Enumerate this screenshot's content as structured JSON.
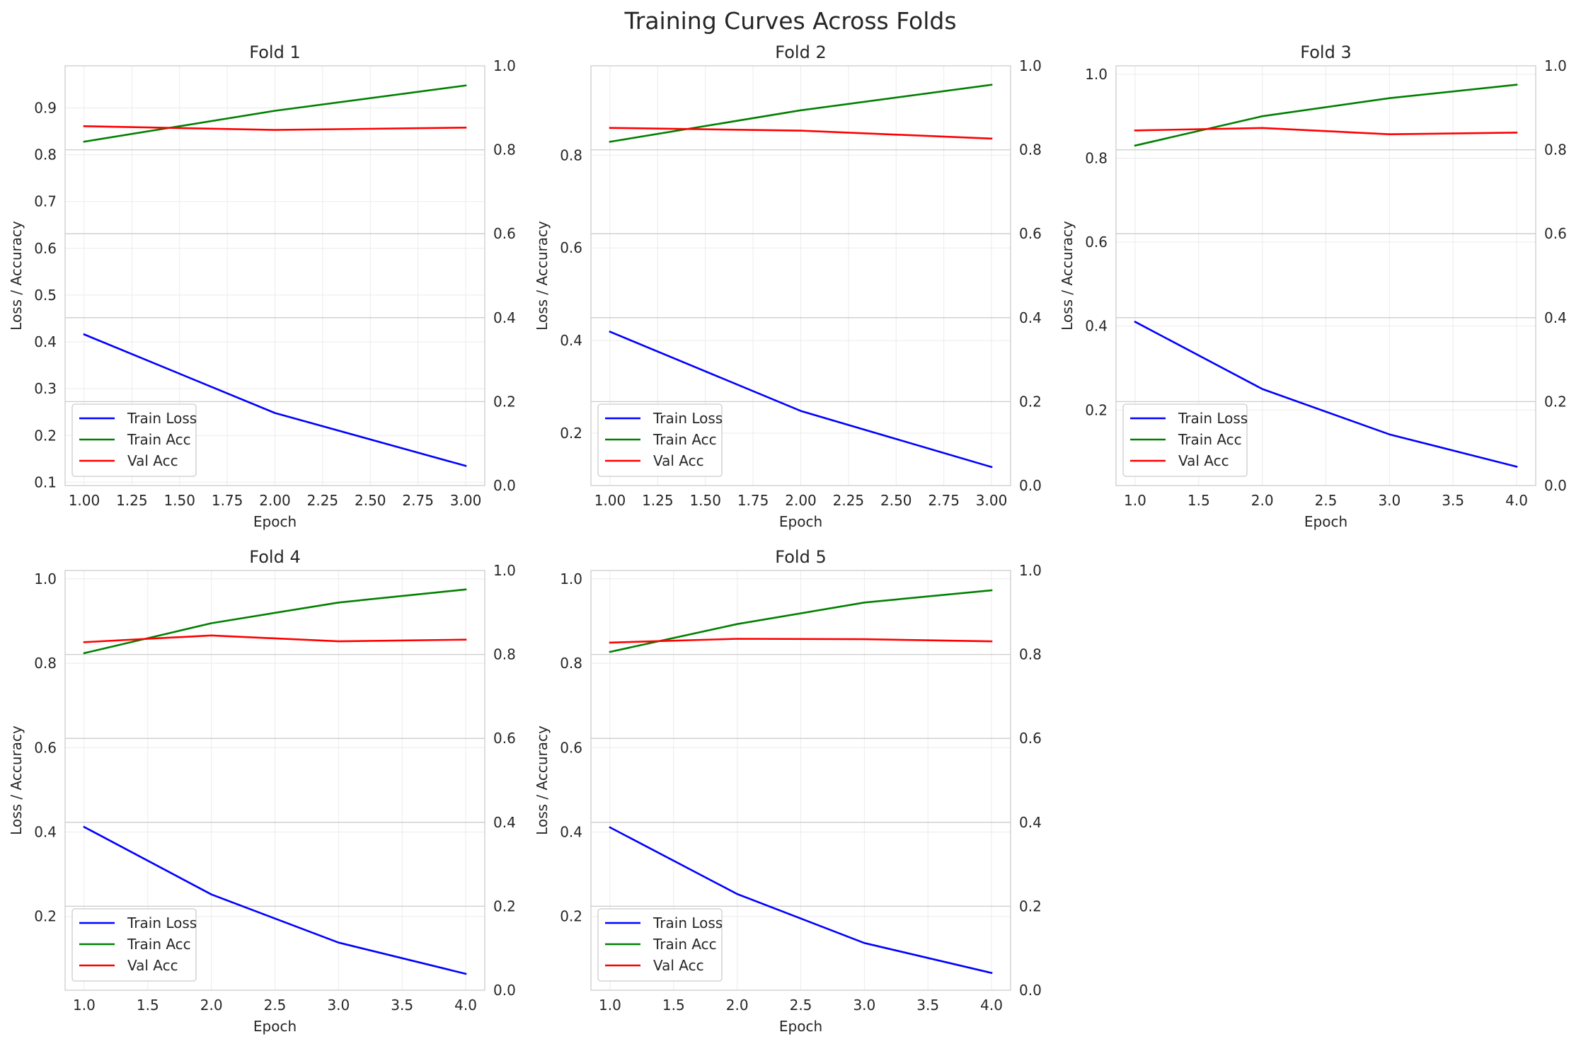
{
  "chart_data": {
    "type": "line",
    "title": "Training Curves Across Folds",
    "colors": {
      "Train Loss": "#0000ff",
      "Train Acc": "#008000",
      "Val Acc": "#ff0000"
    },
    "legend_position": "lower-left",
    "grid": true,
    "panels": [
      {
        "title": "Fold 1",
        "xlabel": "Epoch",
        "ylabel": "Loss / Accuracy",
        "x": [
          1,
          2,
          3
        ],
        "xlim": [
          0.9,
          3.1
        ],
        "xticks": [
          1.0,
          1.25,
          1.5,
          1.75,
          2.0,
          2.25,
          2.5,
          2.75,
          3.0
        ],
        "xtick_labels": [
          "1.00",
          "1.25",
          "1.50",
          "1.75",
          "2.00",
          "2.25",
          "2.50",
          "2.75",
          "3.00"
        ],
        "ylim": [
          0.093,
          0.99
        ],
        "yticks": [
          0.1,
          0.2,
          0.3,
          0.4,
          0.5,
          0.6,
          0.7,
          0.8,
          0.9
        ],
        "ytick_labels": [
          "0.1",
          "0.2",
          "0.3",
          "0.4",
          "0.5",
          "0.6",
          "0.7",
          "0.8",
          "0.9"
        ],
        "y2lim": [
          0,
          1
        ],
        "y2ticks": [
          0.0,
          0.2,
          0.4,
          0.6,
          0.8,
          1.0
        ],
        "y2tick_labels": [
          "0.0",
          "0.2",
          "0.4",
          "0.6",
          "0.8",
          "1.0"
        ],
        "series": [
          {
            "name": "Train Loss",
            "values": [
              0.416,
              0.248,
              0.135
            ]
          },
          {
            "name": "Train Acc",
            "values": [
              0.828,
              0.894,
              0.948
            ]
          },
          {
            "name": "Val Acc",
            "values": [
              0.861,
              0.853,
              0.858
            ]
          }
        ]
      },
      {
        "title": "Fold 2",
        "xlabel": "Epoch",
        "ylabel": "Loss / Accuracy",
        "x": [
          1,
          2,
          3
        ],
        "xlim": [
          0.9,
          3.1
        ],
        "xticks": [
          1.0,
          1.25,
          1.5,
          1.75,
          2.0,
          2.25,
          2.5,
          2.75,
          3.0
        ],
        "xtick_labels": [
          "1.00",
          "1.25",
          "1.50",
          "1.75",
          "2.00",
          "2.25",
          "2.50",
          "2.75",
          "3.00"
        ],
        "ylim": [
          0.087,
          0.993
        ],
        "yticks": [
          0.2,
          0.4,
          0.6,
          0.8
        ],
        "ytick_labels": [
          "0.2",
          "0.4",
          "0.6",
          "0.8"
        ],
        "y2lim": [
          0,
          1
        ],
        "y2ticks": [
          0.0,
          0.2,
          0.4,
          0.6,
          0.8,
          1.0
        ],
        "y2tick_labels": [
          "0.0",
          "0.2",
          "0.4",
          "0.6",
          "0.8",
          "1.0"
        ],
        "series": [
          {
            "name": "Train Loss",
            "values": [
              0.419,
              0.248,
              0.127
            ]
          },
          {
            "name": "Train Acc",
            "values": [
              0.829,
              0.897,
              0.952
            ]
          },
          {
            "name": "Val Acc",
            "values": [
              0.859,
              0.853,
              0.836
            ]
          }
        ]
      },
      {
        "title": "Fold 3",
        "xlabel": "Epoch",
        "ylabel": "Loss / Accuracy",
        "x": [
          1,
          2,
          3,
          4
        ],
        "xlim": [
          0.85,
          4.15
        ],
        "xticks": [
          1.0,
          1.5,
          2.0,
          2.5,
          3.0,
          3.5,
          4.0
        ],
        "xtick_labels": [
          "1.0",
          "1.5",
          "2.0",
          "2.5",
          "3.0",
          "3.5",
          "4.0"
        ],
        "ylim": [
          0.02,
          1.02
        ],
        "yticks": [
          0.2,
          0.4,
          0.6,
          0.8,
          1.0
        ],
        "ytick_labels": [
          "0.2",
          "0.4",
          "0.6",
          "0.8",
          "1.0"
        ],
        "y2lim": [
          0,
          1
        ],
        "y2ticks": [
          0.0,
          0.2,
          0.4,
          0.6,
          0.8,
          1.0
        ],
        "y2tick_labels": [
          "0.0",
          "0.2",
          "0.4",
          "0.6",
          "0.8",
          "1.0"
        ],
        "series": [
          {
            "name": "Train Loss",
            "values": [
              0.41,
              0.25,
              0.142,
              0.065
            ]
          },
          {
            "name": "Train Acc",
            "values": [
              0.83,
              0.9,
              0.943,
              0.975
            ]
          },
          {
            "name": "Val Acc",
            "values": [
              0.866,
              0.872,
              0.857,
              0.861
            ]
          }
        ]
      },
      {
        "title": "Fold 4",
        "xlabel": "Epoch",
        "ylabel": "Loss / Accuracy",
        "x": [
          1,
          2,
          3,
          4
        ],
        "xlim": [
          0.85,
          4.15
        ],
        "xticks": [
          1.0,
          1.5,
          2.0,
          2.5,
          3.0,
          3.5,
          4.0
        ],
        "xtick_labels": [
          "1.0",
          "1.5",
          "2.0",
          "2.5",
          "3.0",
          "3.5",
          "4.0"
        ],
        "ylim": [
          0.025,
          1.02
        ],
        "yticks": [
          0.2,
          0.4,
          0.6,
          0.8,
          1.0
        ],
        "ytick_labels": [
          "0.2",
          "0.4",
          "0.6",
          "0.8",
          "1.0"
        ],
        "y2lim": [
          0,
          1
        ],
        "y2ticks": [
          0.0,
          0.2,
          0.4,
          0.6,
          0.8,
          1.0
        ],
        "y2tick_labels": [
          "0.0",
          "0.2",
          "0.4",
          "0.6",
          "0.8",
          "1.0"
        ],
        "series": [
          {
            "name": "Train Loss",
            "values": [
              0.412,
              0.252,
              0.138,
              0.064
            ]
          },
          {
            "name": "Train Acc",
            "values": [
              0.824,
              0.895,
              0.944,
              0.975
            ]
          },
          {
            "name": "Val Acc",
            "values": [
              0.85,
              0.866,
              0.852,
              0.856
            ]
          }
        ]
      },
      {
        "title": "Fold 5",
        "xlabel": "Epoch",
        "ylabel": "Loss / Accuracy",
        "x": [
          1,
          2,
          3,
          4
        ],
        "xlim": [
          0.85,
          4.15
        ],
        "xticks": [
          1.0,
          1.5,
          2.0,
          2.5,
          3.0,
          3.5,
          4.0
        ],
        "xtick_labels": [
          "1.0",
          "1.5",
          "2.0",
          "2.5",
          "3.0",
          "3.5",
          "4.0"
        ],
        "ylim": [
          0.025,
          1.02
        ],
        "yticks": [
          0.2,
          0.4,
          0.6,
          0.8,
          1.0
        ],
        "ytick_labels": [
          "0.2",
          "0.4",
          "0.6",
          "0.8",
          "1.0"
        ],
        "y2lim": [
          0,
          1
        ],
        "y2ticks": [
          0.0,
          0.2,
          0.4,
          0.6,
          0.8,
          1.0
        ],
        "y2tick_labels": [
          "0.0",
          "0.2",
          "0.4",
          "0.6",
          "0.8",
          "1.0"
        ],
        "series": [
          {
            "name": "Train Loss",
            "values": [
              0.411,
              0.253,
              0.137,
              0.066
            ]
          },
          {
            "name": "Train Acc",
            "values": [
              0.827,
              0.893,
              0.944,
              0.973
            ]
          },
          {
            "name": "Val Acc",
            "values": [
              0.849,
              0.858,
              0.857,
              0.852
            ]
          }
        ]
      }
    ]
  }
}
